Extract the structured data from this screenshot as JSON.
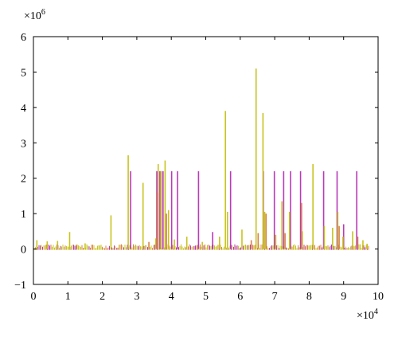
{
  "chart_data": {
    "type": "line",
    "title": "",
    "xlabel": "",
    "ylabel": "",
    "xlim": [
      0,
      100000
    ],
    "ylim": [
      -1000000,
      6000000
    ],
    "x_ticks": [
      "0",
      "1",
      "2",
      "3",
      "4",
      "5",
      "6",
      "7",
      "8",
      "9",
      "10"
    ],
    "y_ticks": [
      "−1",
      "0",
      "1",
      "2",
      "3",
      "4",
      "5",
      "6"
    ],
    "x_multiplier": {
      "base": "×10",
      "exp": "4"
    },
    "y_multiplier": {
      "base": "×10",
      "exp": "6"
    },
    "grid": false,
    "colors": {
      "series_a": "#b93ab7",
      "series_b": "#c8c41f",
      "series_c": "#d9824a"
    },
    "series": [
      {
        "color_key": "series_a",
        "spikes": [
          [
            28200,
            2200000
          ],
          [
            35800,
            2200000
          ],
          [
            36700,
            2200000
          ],
          [
            37600,
            2200000
          ],
          [
            40100,
            2200000
          ],
          [
            41800,
            2200000
          ],
          [
            47900,
            2200000
          ],
          [
            57200,
            2200000
          ],
          [
            66700,
            2200000
          ],
          [
            69900,
            2200000
          ],
          [
            72600,
            2200000
          ],
          [
            74600,
            2200000
          ],
          [
            77500,
            2200000
          ],
          [
            84200,
            2200000
          ],
          [
            88100,
            2200000
          ],
          [
            93800,
            2200000
          ],
          [
            52000,
            480000
          ],
          [
            90000,
            700000
          ]
        ]
      },
      {
        "color_key": "series_b",
        "spikes": [
          [
            1000,
            250000
          ],
          [
            4000,
            220000
          ],
          [
            7000,
            230000
          ],
          [
            10500,
            480000
          ],
          [
            15000,
            160000
          ],
          [
            22500,
            950000
          ],
          [
            27500,
            2650000
          ],
          [
            31800,
            1870000
          ],
          [
            35500,
            300000
          ],
          [
            36200,
            2400000
          ],
          [
            37100,
            2200000
          ],
          [
            38200,
            2500000
          ],
          [
            39200,
            1100000
          ],
          [
            40900,
            270000
          ],
          [
            44500,
            350000
          ],
          [
            49000,
            200000
          ],
          [
            54000,
            350000
          ],
          [
            55700,
            3900000
          ],
          [
            56300,
            1050000
          ],
          [
            60500,
            550000
          ],
          [
            64600,
            5100000
          ],
          [
            66600,
            3840000
          ],
          [
            67100,
            1050000
          ],
          [
            70300,
            400000
          ],
          [
            72100,
            1350000
          ],
          [
            74300,
            1050000
          ],
          [
            78000,
            500000
          ],
          [
            81100,
            2400000
          ],
          [
            84400,
            650000
          ],
          [
            86800,
            600000
          ],
          [
            88300,
            1050000
          ],
          [
            89800,
            350000
          ],
          [
            92600,
            500000
          ],
          [
            95600,
            250000
          ],
          [
            96800,
            150000
          ]
        ]
      },
      {
        "color_key": "series_c",
        "spikes": [
          [
            12500,
            120000
          ],
          [
            33500,
            200000
          ],
          [
            36000,
            1600000
          ],
          [
            38600,
            1000000
          ],
          [
            63200,
            250000
          ],
          [
            65200,
            450000
          ],
          [
            67500,
            1000000
          ],
          [
            73000,
            450000
          ],
          [
            77800,
            1300000
          ],
          [
            88700,
            650000
          ],
          [
            94100,
            350000
          ]
        ]
      }
    ]
  }
}
